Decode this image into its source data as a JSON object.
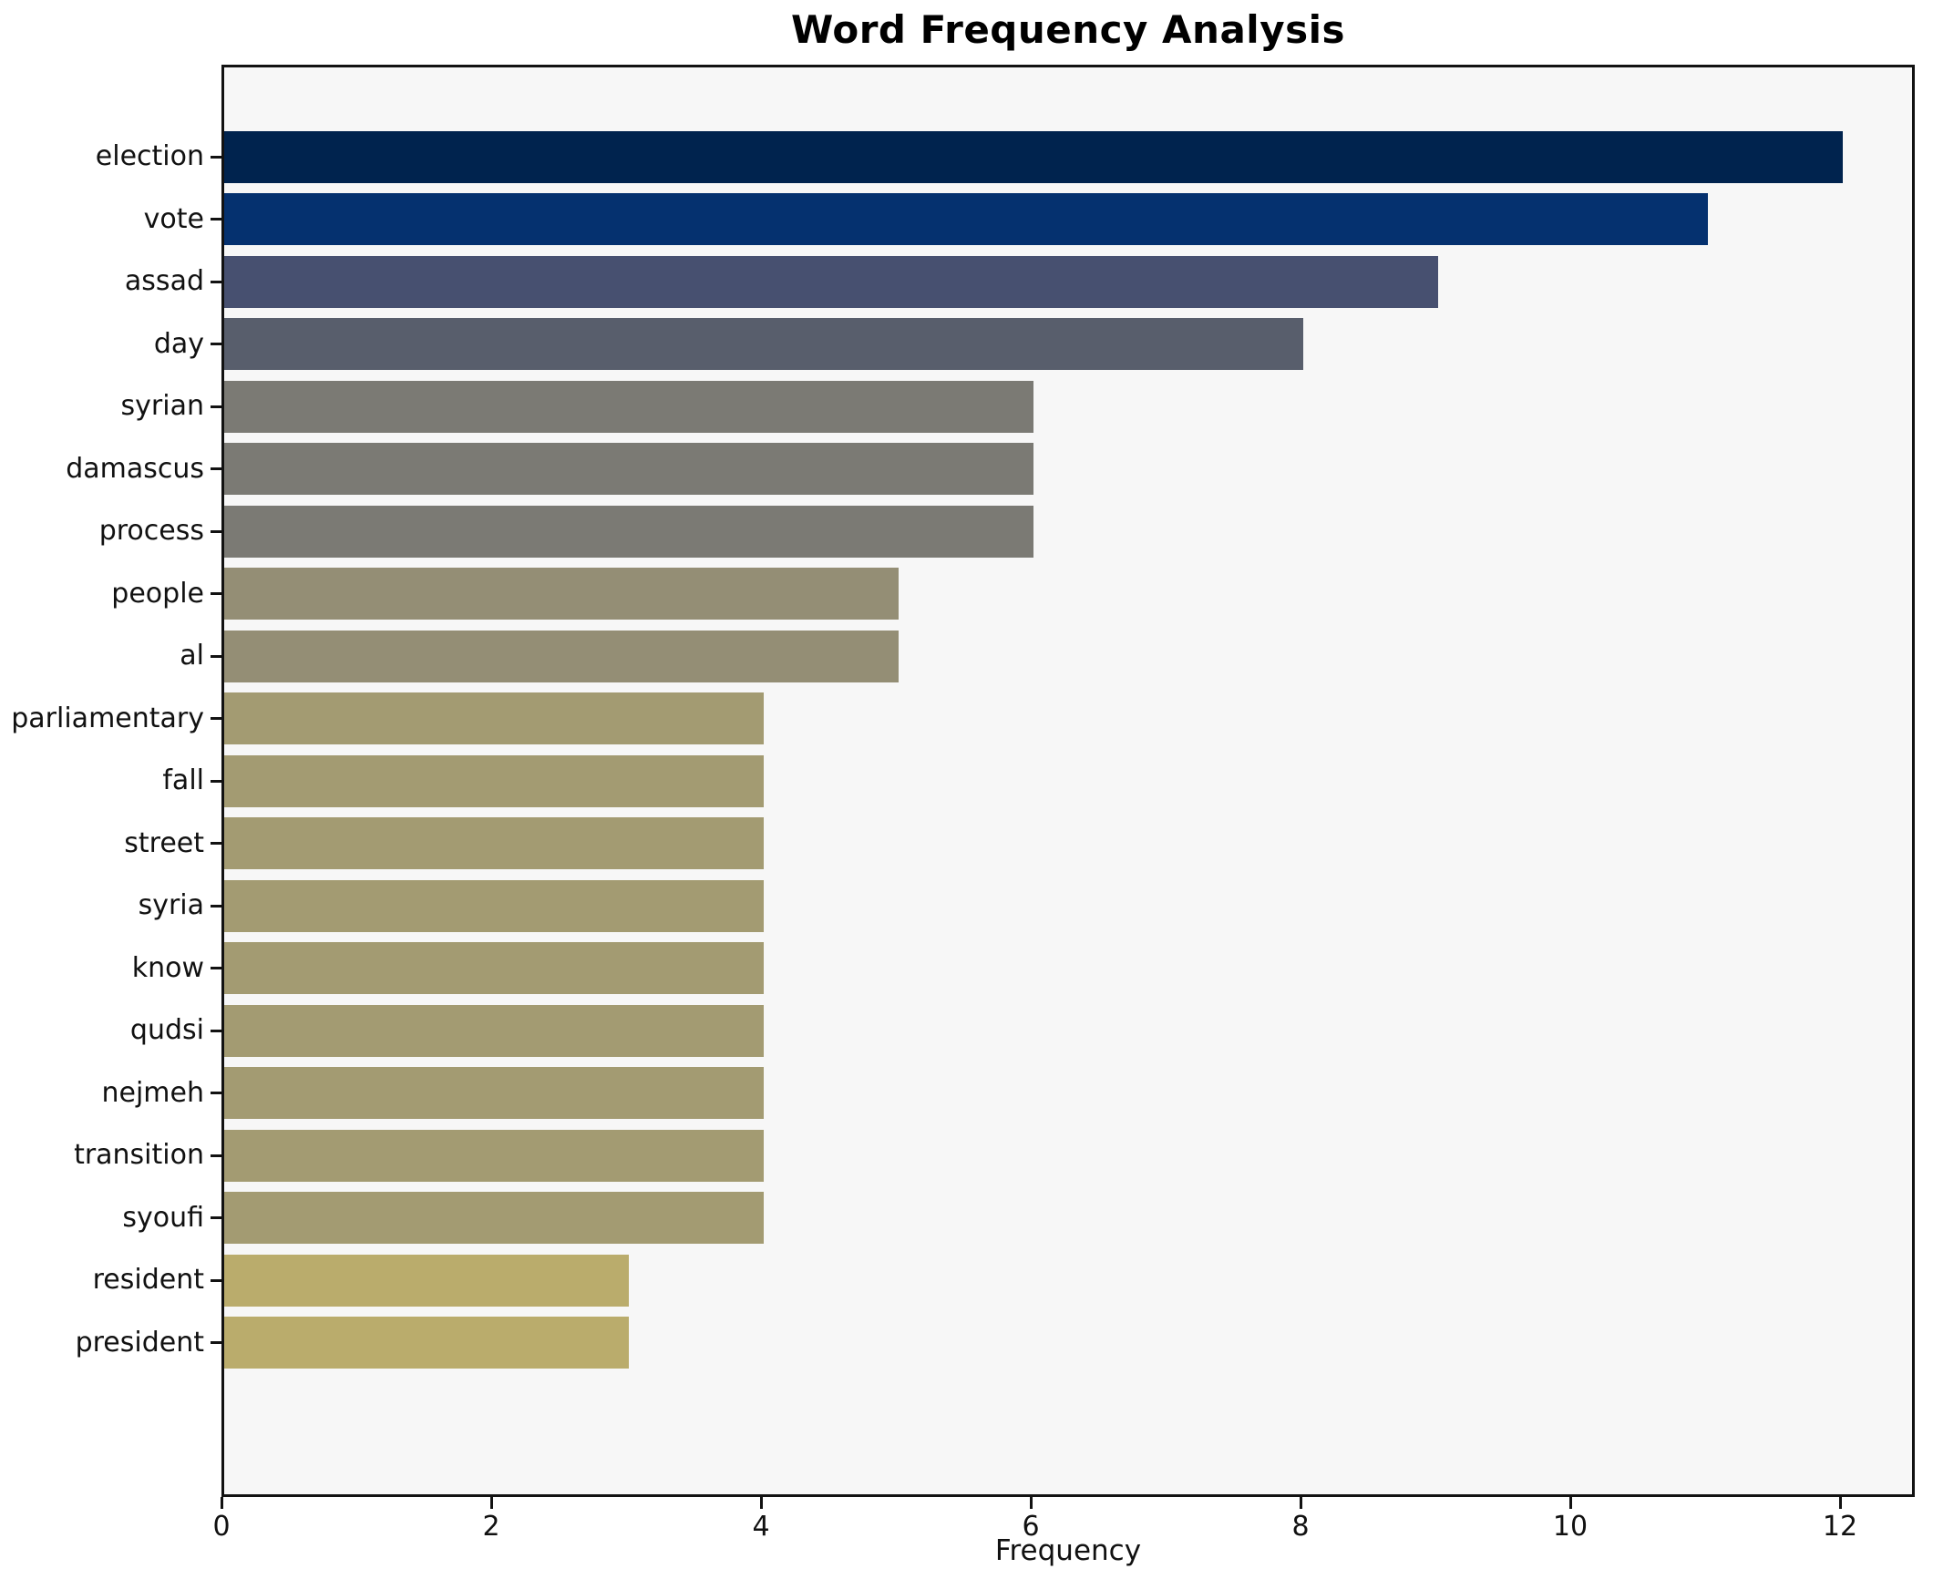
{
  "chart_data": {
    "type": "bar",
    "orientation": "horizontal",
    "title": "Word Frequency Analysis",
    "xlabel": "Frequency",
    "ylabel": "",
    "categories": [
      "election",
      "vote",
      "assad",
      "day",
      "syrian",
      "damascus",
      "process",
      "people",
      "al",
      "parliamentary",
      "fall",
      "street",
      "syria",
      "know",
      "qudsi",
      "nejmeh",
      "transition",
      "syoufi",
      "resident",
      "president"
    ],
    "values": [
      12,
      11,
      9,
      8,
      6,
      6,
      6,
      5,
      5,
      4,
      4,
      4,
      4,
      4,
      4,
      4,
      4,
      4,
      3,
      3
    ],
    "bar_colors": [
      "#00234E",
      "#05316F",
      "#475070",
      "#585E6C",
      "#7B7A74",
      "#7B7A74",
      "#7B7A74",
      "#948E75",
      "#948E75",
      "#A39B72",
      "#A39B72",
      "#A39B72",
      "#A39B72",
      "#A39B72",
      "#A39B72",
      "#A39B72",
      "#A39B72",
      "#A39B72",
      "#BAAC6C",
      "#BAAC6C"
    ],
    "xlim": [
      0,
      12.55
    ],
    "xticks": [
      0,
      2,
      4,
      6,
      8,
      10,
      12
    ],
    "grid": false,
    "legend_position": "none",
    "plot_background": "#F7F7F7",
    "page_background": "#FFFFFF",
    "frame_color": "#121212",
    "text_color": "#111111"
  }
}
